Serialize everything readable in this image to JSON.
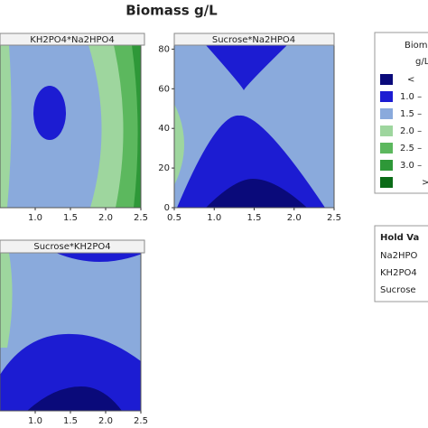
{
  "chart_data": {
    "type": "contour",
    "title": "Biomass g/L",
    "panels": [
      {
        "title": "KH2PO4*Na2HPO4",
        "xlim": [
          0.5,
          2.5
        ],
        "xticks": [
          {
            "value": 1,
            "label": "1.0"
          },
          1.5,
          {
            "value": 2,
            "label": "2.0"
          },
          2.5
        ]
      },
      {
        "title": "Sucrose*Na2HPO4",
        "xlim": [
          0.5,
          2.5
        ],
        "xticks": [
          0.5,
          {
            "value": 1,
            "label": "1.0"
          },
          1.5,
          {
            "value": 2,
            "label": "2.0"
          },
          2.5
        ],
        "ylim": [
          0,
          82
        ],
        "yticks": [
          0,
          20,
          40,
          60,
          80
        ]
      },
      {
        "title": "Sucrose*KH2PO4",
        "xlim": [
          0.5,
          2.5
        ],
        "xticks": [
          {
            "value": 1,
            "label": "1.0"
          },
          1.5,
          {
            "value": 2,
            "label": "2.0"
          },
          2.5
        ]
      }
    ],
    "legend": {
      "title": "Biom",
      "subtitle": "g/L",
      "items": [
        {
          "label": "<",
          "color": "#0a0a7a"
        },
        {
          "label": "1.0 –",
          "color": "#1c1cd2"
        },
        {
          "label": "1.5 –",
          "color": "#8aaadc"
        },
        {
          "label": "2.0 –",
          "color": "#9ed69e"
        },
        {
          "label": "2.5 –",
          "color": "#5cb85e"
        },
        {
          "label": "3.0 –",
          "color": "#2e9838"
        },
        {
          "label": ">",
          "color": "#0b6b17"
        }
      ]
    },
    "hold": {
      "title": "Hold Va",
      "rows": [
        "Na2HPO",
        "KH2PO4",
        "Sucrose"
      ]
    }
  }
}
